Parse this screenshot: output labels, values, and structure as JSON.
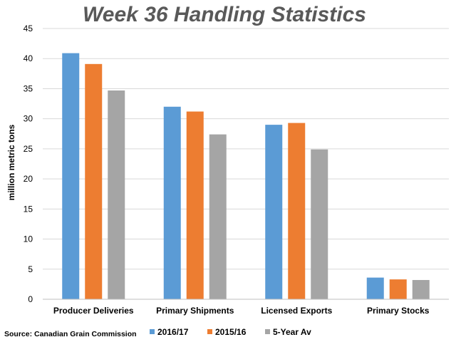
{
  "chart_data": {
    "type": "bar",
    "title": "Week 36 Handling Statistics",
    "ylabel": "million metric tons",
    "xlabel": "",
    "ylim": [
      0,
      45
    ],
    "yticks": [
      0,
      5,
      10,
      15,
      20,
      25,
      30,
      35,
      40,
      45
    ],
    "grid": true,
    "legend_position": "bottom",
    "categories": [
      "Producer Deliveries",
      "Primary Shipments",
      "Licensed Exports",
      "Primary Stocks"
    ],
    "series": [
      {
        "name": "2016/17",
        "color": "#5b9bd5",
        "values": [
          40.9,
          32.0,
          29.0,
          3.6
        ]
      },
      {
        "name": "2015/16",
        "color": "#ed7d31",
        "values": [
          39.1,
          31.2,
          29.3,
          3.3
        ]
      },
      {
        "name": "5-Year Av",
        "color": "#a5a5a5",
        "values": [
          34.7,
          27.4,
          24.9,
          3.2
        ]
      }
    ],
    "source": "Source: Canadian Grain Commission"
  }
}
